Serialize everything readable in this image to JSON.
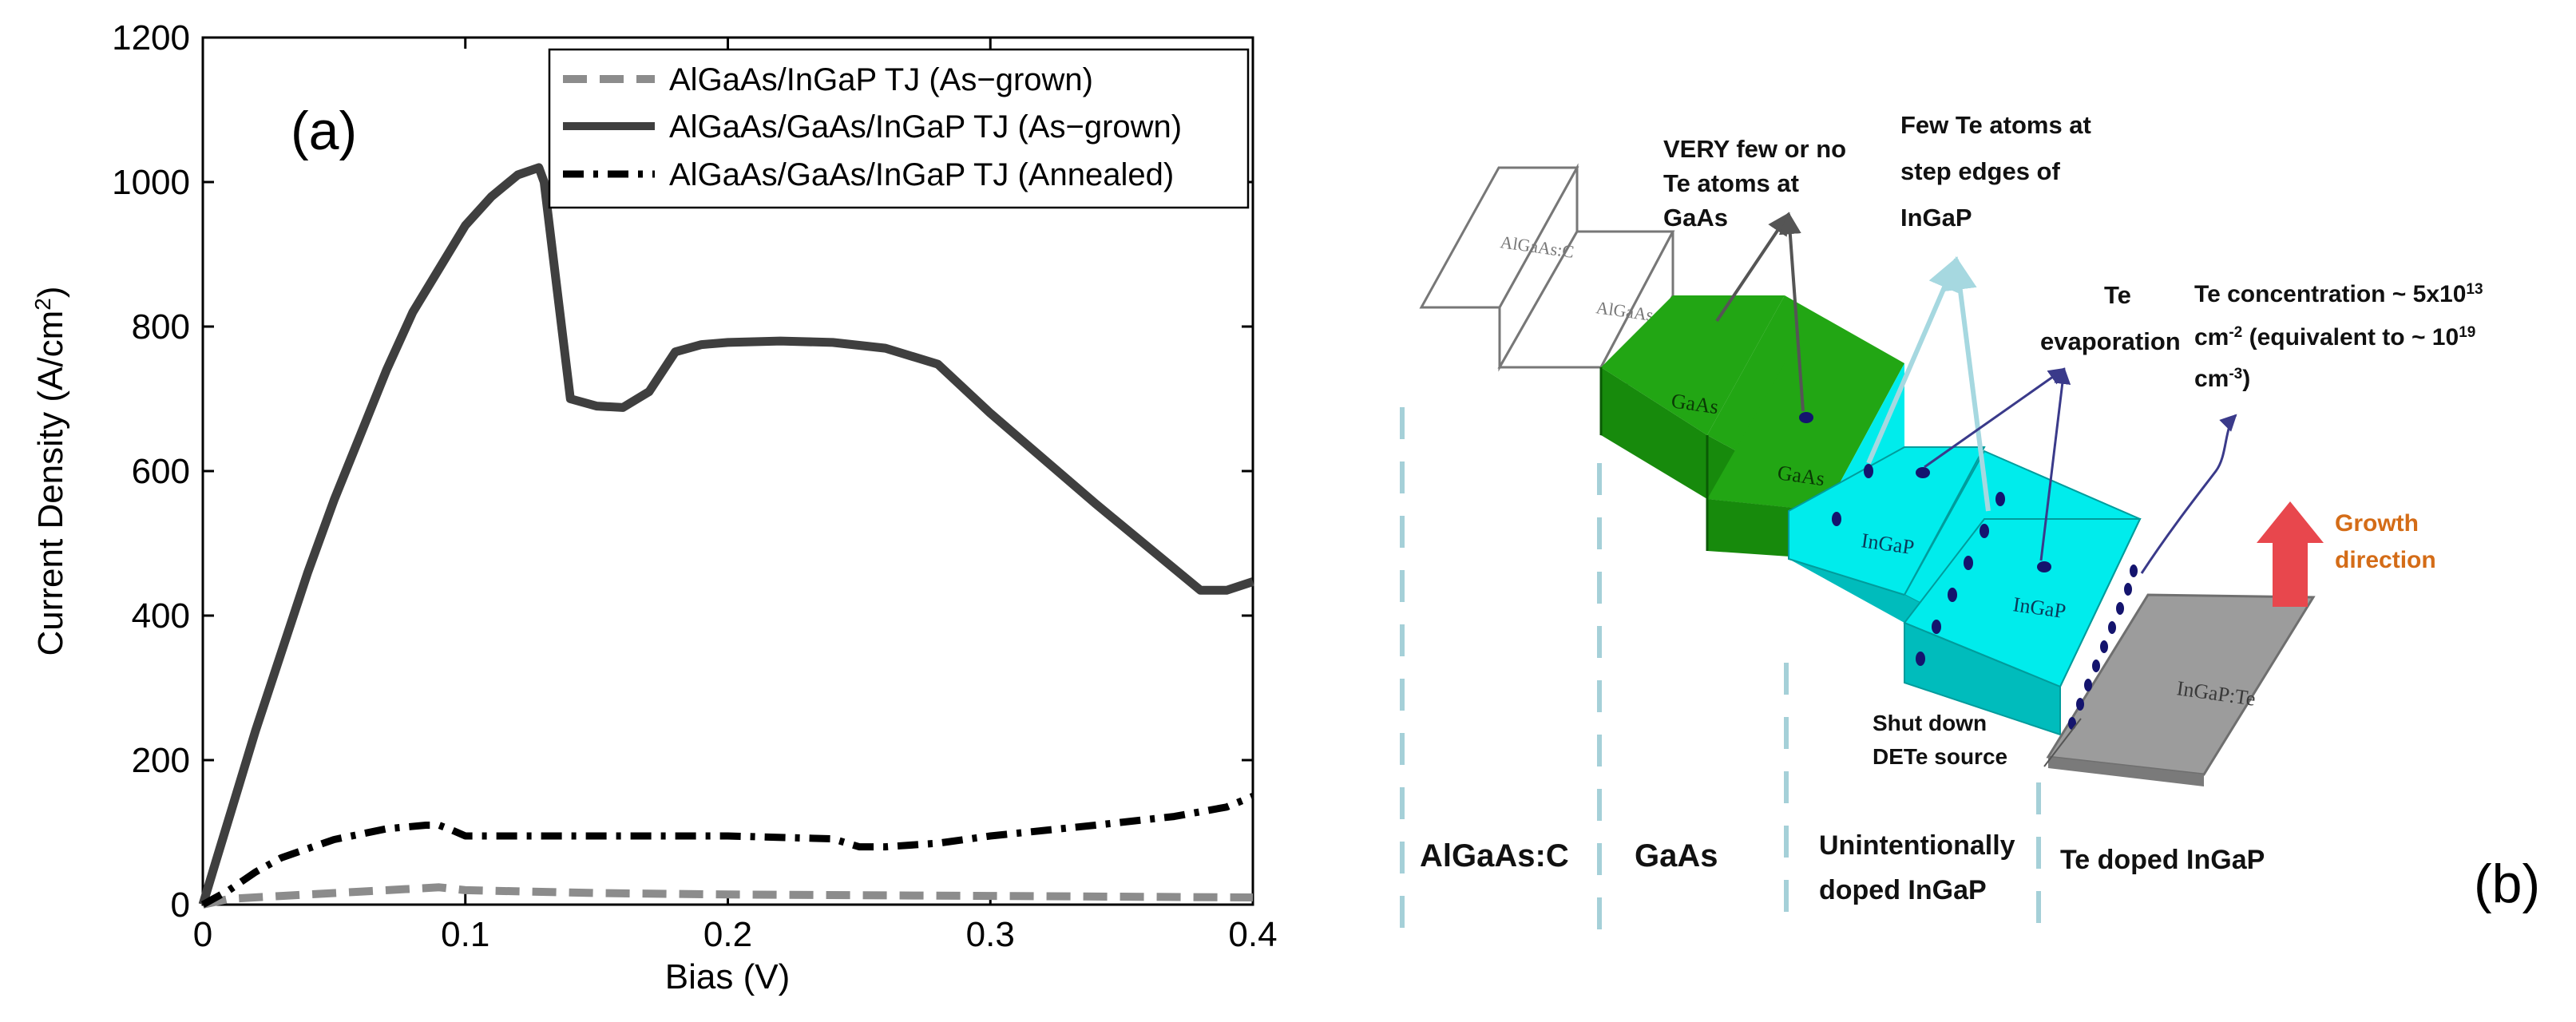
{
  "chart_data": [
    {
      "type": "line",
      "panel_label": "(a)",
      "xlabel": "Bias (V)",
      "ylabel": "Current Density (A/cm",
      "ylabel_sup": "2",
      "ylabel_end": ")",
      "xlim": [
        0,
        0.4
      ],
      "ylim": [
        0,
        1200
      ],
      "xticks": [
        0,
        0.1,
        0.2,
        0.3,
        0.4
      ],
      "xtick_labels": [
        "0",
        "0.1",
        "0.2",
        "0.3",
        "0.4"
      ],
      "yticks": [
        0,
        200,
        400,
        600,
        800,
        1000,
        1200
      ],
      "ytick_labels": [
        "0",
        "200",
        "400",
        "600",
        "800",
        "1000",
        "1200"
      ],
      "legend_position": "top-right",
      "series": [
        {
          "name": "AlGaAs/InGaP TJ (As−grown)",
          "style": "dashed",
          "color": "#8c8c8c",
          "x": [
            0,
            0.01,
            0.03,
            0.06,
            0.08,
            0.09,
            0.1,
            0.15,
            0.2,
            0.3,
            0.4
          ],
          "y": [
            0,
            8,
            12,
            18,
            22,
            24,
            20,
            16,
            14,
            12,
            10
          ]
        },
        {
          "name": "AlGaAs/GaAs/InGaP TJ (As−grown)",
          "style": "solid",
          "color": "#3f3f3f",
          "x": [
            0,
            0.005,
            0.01,
            0.02,
            0.03,
            0.04,
            0.05,
            0.06,
            0.07,
            0.08,
            0.09,
            0.1,
            0.11,
            0.12,
            0.128,
            0.13,
            0.135,
            0.14,
            0.15,
            0.16,
            0.17,
            0.18,
            0.19,
            0.2,
            0.22,
            0.24,
            0.26,
            0.28,
            0.3,
            0.34,
            0.38,
            0.39,
            0.4
          ],
          "y": [
            0,
            60,
            120,
            240,
            350,
            460,
            560,
            650,
            740,
            820,
            880,
            940,
            980,
            1010,
            1020,
            1000,
            850,
            700,
            690,
            688,
            710,
            765,
            775,
            778,
            780,
            778,
            770,
            748,
            680,
            555,
            435,
            435,
            447
          ]
        },
        {
          "name": "AlGaAs/GaAs/InGaP TJ (Annealed)",
          "style": "dashdot",
          "color": "#000000",
          "x": [
            0,
            0.01,
            0.02,
            0.03,
            0.05,
            0.07,
            0.085,
            0.09,
            0.095,
            0.1,
            0.15,
            0.2,
            0.24,
            0.25,
            0.26,
            0.28,
            0.3,
            0.34,
            0.37,
            0.39,
            0.4
          ],
          "y": [
            0,
            20,
            45,
            65,
            90,
            105,
            110,
            110,
            103,
            95,
            95,
            95,
            91,
            80,
            80,
            85,
            95,
            110,
            122,
            135,
            150
          ]
        }
      ]
    },
    {
      "type": "diagram",
      "panel_label": "(b)",
      "block_labels": [
        "AlGaAs:C",
        "AlGaAs:C",
        "GaAs",
        "GaAs",
        "InGaP",
        "InGaP",
        "InGaP:Te"
      ],
      "annotations": {
        "very_few": [
          "VERY few or no",
          "Te atoms at",
          "GaAs"
        ],
        "few_te": [
          "Few Te atoms at",
          "step edges of",
          "InGaP"
        ],
        "evaporation": [
          "Te",
          "evaporation"
        ],
        "conc_line1": "Te concentration ~ 5x10",
        "conc_sup1": "13",
        "conc_line2": "cm",
        "conc_sup2": "-2",
        "conc_line2b": " (equivalent to ~ 10",
        "conc_sup3": "19",
        "conc_line3": "cm",
        "conc_sup4": "-3",
        "conc_line3b": ")",
        "shutdown": [
          "Shut down",
          "DETe source"
        ],
        "growth": [
          "Growth",
          "direction"
        ]
      },
      "region_labels": {
        "algaas": "AlGaAs:C",
        "gaas": "GaAs",
        "unintentional": [
          "Unintentionally",
          "doped InGaP"
        ],
        "te_doped": "Te doped InGaP"
      },
      "colors": {
        "gaas": "#22a614",
        "gaas_dark": "#178a0c",
        "ingap": "#00ecec",
        "ingap_dark": "#00bcbc",
        "substrate": "#9c9c9c",
        "arrow_growth": "#e8474d",
        "growth_text": "#d46c17",
        "dot": "#14146e",
        "arrow_dark": "#3a3a8a",
        "arrow_light": "#a6d8e0",
        "dash": "#a5d0d8"
      }
    }
  ]
}
